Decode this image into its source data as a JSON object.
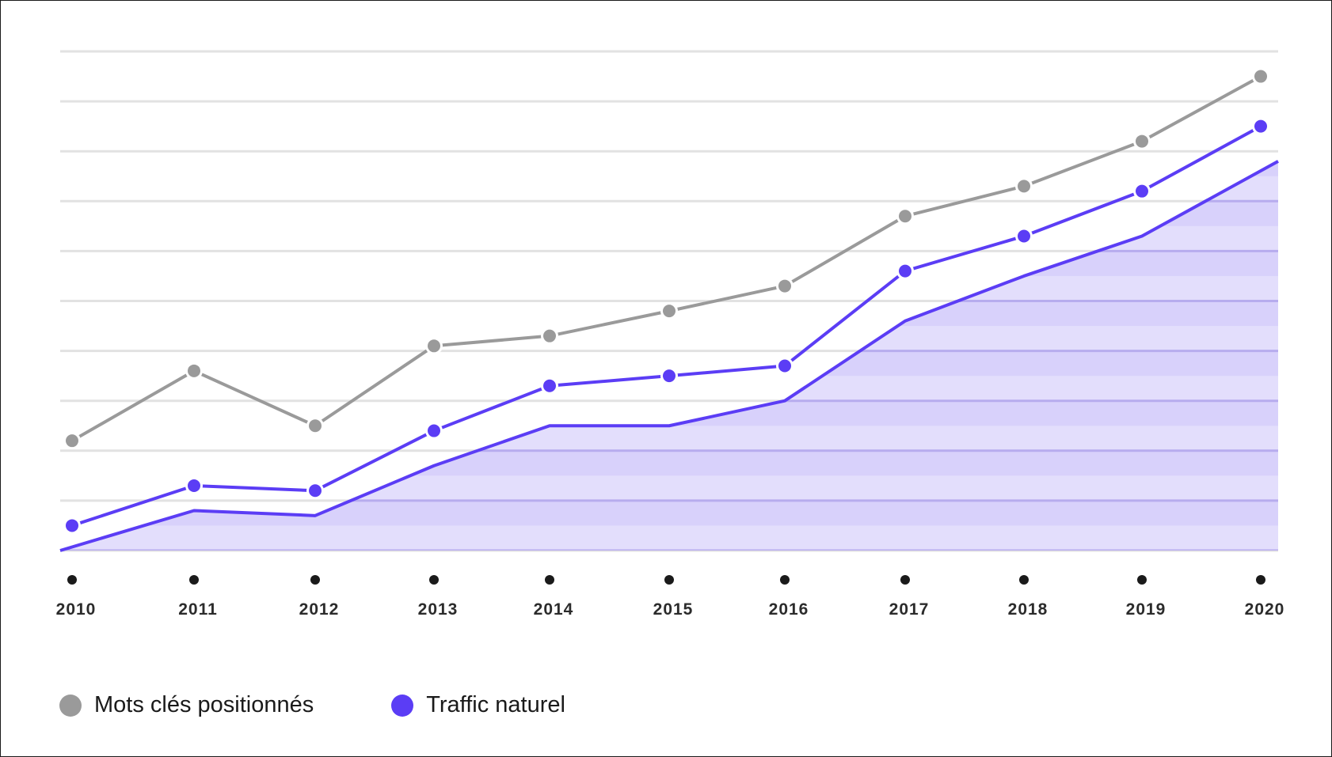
{
  "chart_data": {
    "type": "line",
    "categories": [
      "2010",
      "2011",
      "2012",
      "2013",
      "2014",
      "2015",
      "2016",
      "2017",
      "2018",
      "2019",
      "2020"
    ],
    "series": [
      {
        "name": "Mots clés positionnés",
        "style": "line-markers",
        "color": "#9a9a9a",
        "values": [
          2.2,
          3.6,
          2.5,
          4.1,
          4.3,
          4.8,
          5.3,
          6.7,
          7.3,
          8.2,
          9.5
        ]
      },
      {
        "name": "Traffic naturel",
        "style": "line-markers",
        "color": "#5b3df5",
        "values": [
          0.5,
          1.3,
          1.2,
          2.4,
          3.3,
          3.5,
          3.7,
          5.6,
          6.3,
          7.2,
          8.5
        ]
      },
      {
        "name": "",
        "style": "area",
        "color": "#5b3df5",
        "fill": "#d6cffb",
        "values": [
          0.0,
          0.8,
          0.7,
          1.7,
          2.5,
          2.5,
          3.0,
          4.6,
          5.5,
          6.3,
          7.8
        ]
      }
    ],
    "ylim": [
      0,
      10
    ],
    "grid": true,
    "y_tick_labels_visible": false,
    "legend_placement": "bottom-left"
  },
  "legend": {
    "items": [
      {
        "label": "Mots clés positionnés",
        "color": "#9a9a9a"
      },
      {
        "label": "Traffic naturel",
        "color": "#5b3df5"
      }
    ]
  }
}
